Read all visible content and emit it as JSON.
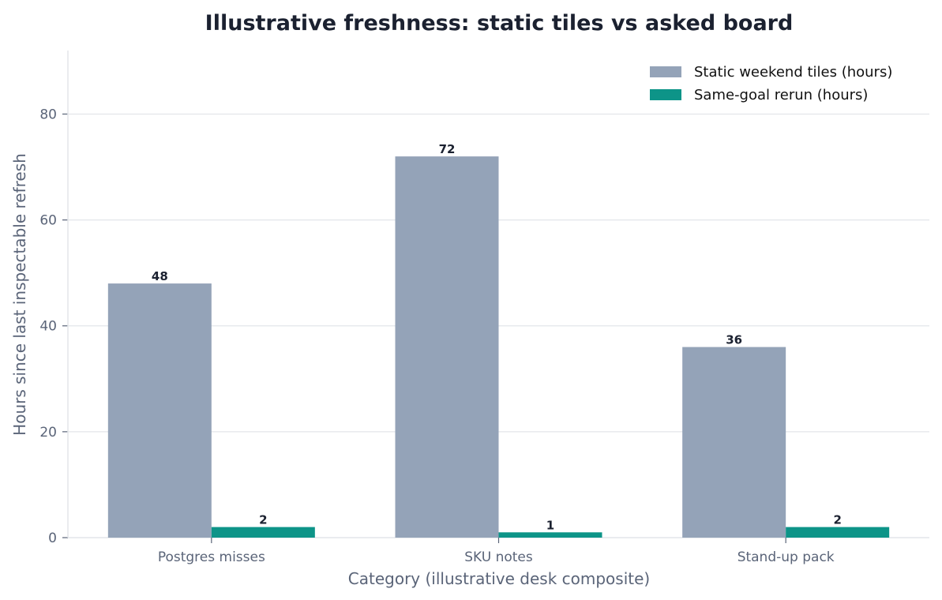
{
  "chart_data": {
    "type": "bar",
    "title": "Illustrative freshness: static tiles vs asked board",
    "xlabel": "Category (illustrative desk composite)",
    "ylabel": "Hours since last inspectable refresh",
    "categories": [
      "Postgres misses",
      "SKU notes",
      "Stand-up pack"
    ],
    "series": [
      {
        "name": "Static weekend tiles (hours)",
        "values": [
          48,
          72,
          36
        ],
        "color": "#94a3b8"
      },
      {
        "name": "Same-goal rerun (hours)",
        "values": [
          2,
          1,
          2
        ],
        "color": "#0d9488"
      }
    ],
    "ylim": [
      0,
      92
    ],
    "yticks": [
      0,
      20,
      40,
      60,
      80
    ],
    "grid": "y",
    "legend": "top-right"
  }
}
